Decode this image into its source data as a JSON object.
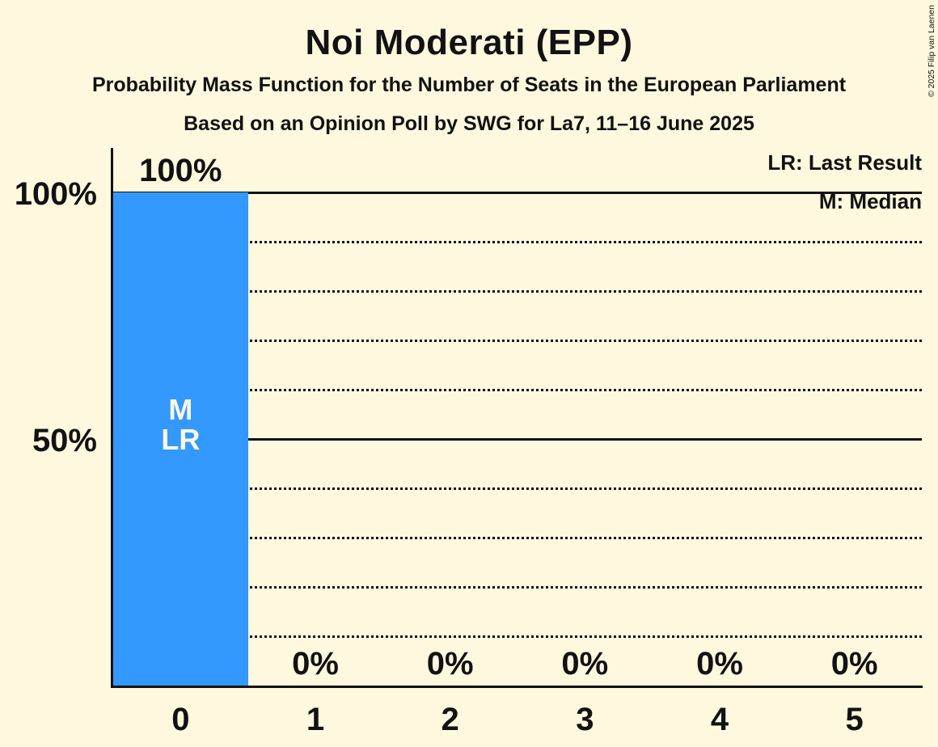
{
  "title": "Noi Moderati (EPP)",
  "subtitles": [
    "Probability Mass Function for the Number of Seats in the European Parliament",
    "Based on an Opinion Poll by SWG for La7, 11–16 June 2025"
  ],
  "copyright": "© 2025 Filip van Laenen",
  "legend": {
    "last_result": "LR: Last Result",
    "median": "M: Median"
  },
  "colors": {
    "background": "#FDF8DE",
    "bar": "#3499FE",
    "ink": "#121212"
  },
  "chart_data": {
    "type": "bar",
    "title": "Noi Moderati (EPP)",
    "xlabel": "",
    "ylabel": "",
    "categories": [
      "0",
      "1",
      "2",
      "3",
      "4",
      "5"
    ],
    "values": [
      100,
      0,
      0,
      0,
      0,
      0
    ],
    "value_labels": [
      "100%",
      "0%",
      "0%",
      "0%",
      "0%",
      "0%"
    ],
    "ylim": [
      0,
      100
    ],
    "y_ticks": [
      {
        "value": 100,
        "label": "100%"
      },
      {
        "value": 50,
        "label": "50%"
      }
    ],
    "solid_gridlines": [
      100,
      50
    ],
    "dotted_gridlines": [
      90,
      80,
      70,
      60,
      40,
      30,
      20,
      10
    ],
    "grid": "horizontal",
    "legend_position": "top-right",
    "annotations": [
      {
        "category": "0",
        "lines": [
          "M",
          "LR"
        ]
      }
    ]
  }
}
